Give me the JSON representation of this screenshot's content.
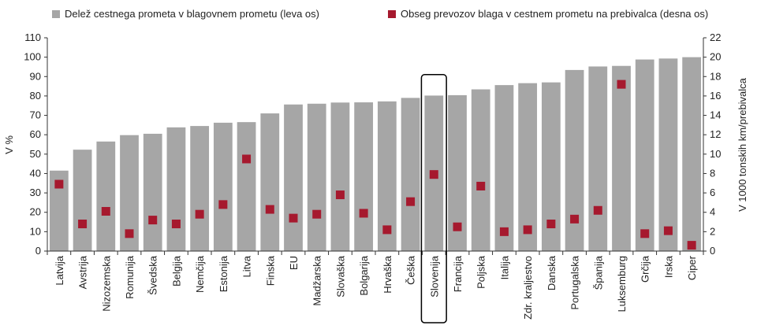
{
  "chart_data": {
    "type": "bar",
    "legend_position": "top",
    "grid": false,
    "highlight_category": "Slovenija",
    "categories": [
      "Latvija",
      "Avstrija",
      "Nizozemska",
      "Romunija",
      "Švedska",
      "Belgija",
      "Nemčija",
      "Estonija",
      "Litva",
      "Finska",
      "EU",
      "Madžarska",
      "Slovaška",
      "Bolgarija",
      "Hrvaška",
      "Češka",
      "Slovenija",
      "Francija",
      "Poljska",
      "Italija",
      "Zdr. kraljestvo",
      "Danska",
      "Portugalska",
      "Španija",
      "Luksemburg",
      "Grčija",
      "Irska",
      "Ciper"
    ],
    "series": [
      {
        "name": "Delež cestnega prometa v blagovnem prometu (leva os)",
        "type": "bar",
        "axis": "left",
        "color": "#a6a6a6",
        "values": [
          41.5,
          52.3,
          56.5,
          59.8,
          60.5,
          63.8,
          64.5,
          66.2,
          66.5,
          71,
          75.6,
          76,
          76.6,
          76.7,
          77.2,
          79,
          80.2,
          80.4,
          83.4,
          85.6,
          86.6,
          87,
          93.4,
          95.2,
          95.5,
          98.8,
          99.3,
          100
        ]
      },
      {
        "name": "Obseg prevozov blaga v cestnem prometu na prebivalca (desna os)",
        "type": "scatter",
        "axis": "right",
        "color": "#a6192e",
        "values": [
          6.9,
          2.8,
          4.1,
          1.8,
          3.2,
          2.8,
          3.8,
          4.8,
          9.5,
          4.3,
          3.4,
          3.8,
          5.8,
          3.9,
          2.2,
          5.1,
          7.9,
          2.5,
          6.7,
          2.0,
          2.2,
          2.8,
          3.3,
          4.2,
          17.2,
          1.8,
          2.1,
          0.6
        ]
      }
    ],
    "ylabel_left": "V %",
    "ylabel_right": "V 1000 tonskih km/prebivalca",
    "ylim_left": [
      0,
      110
    ],
    "yticks_left": [
      0,
      10,
      20,
      30,
      40,
      50,
      60,
      70,
      80,
      90,
      100,
      110
    ],
    "ylim_right": [
      0,
      22
    ],
    "yticks_right": [
      0,
      2,
      4,
      6,
      8,
      10,
      12,
      14,
      16,
      18,
      20,
      22
    ]
  }
}
